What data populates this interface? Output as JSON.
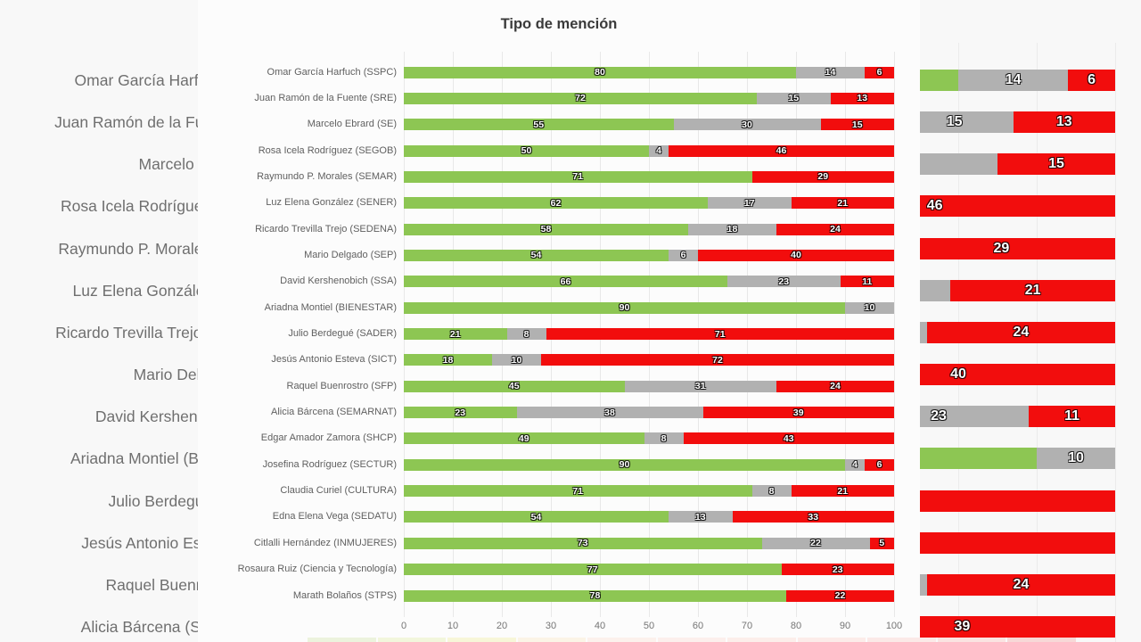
{
  "title": "Tipo de mención",
  "colors": {
    "green": "#8dc653",
    "gray": "#b1b1b1",
    "red": "#f20d0d",
    "grid_main": "#e8e8e8",
    "grid_bg": "#ebebeb",
    "title_text": "#3a3a3a",
    "category_text": "#606060",
    "bg_category_text": "#6f6f6f",
    "axis_text": "#757575",
    "panel_bg": "#fcfcfc",
    "outer_bg": "#f8f8f8"
  },
  "chart_data": {
    "type": "bar",
    "orientation": "horizontal",
    "stacked": true,
    "title": "Tipo de mención",
    "xlabel": "",
    "ylabel": "",
    "xlim": [
      0,
      100
    ],
    "grid": true,
    "legend": "none",
    "categories": [
      "Omar García Harfuch (SSPC)",
      "Juan Ramón de la Fuente (SRE)",
      "Marcelo Ebrard (SE)",
      "Rosa Icela Rodríguez (SEGOB)",
      "Raymundo P. Morales (SEMAR)",
      "Luz Elena González (SENER)",
      "Ricardo Trevilla Trejo (SEDENA)",
      "Mario Delgado (SEP)",
      "David Kershenobich (SSA)",
      "Ariadna Montiel (BIENESTAR)",
      "Julio Berdegué (SADER)",
      "Jesús Antonio Esteva (SICT)",
      "Raquel Buenrostro (SFP)",
      "Alicia Bárcena (SEMARNAT)",
      "Edgar Amador Zamora (SHCP)",
      "Josefina Rodríguez (SECTUR)",
      "Claudia Curiel (CULTURA)",
      "Edna Elena Vega (SEDATU)",
      "Citlalli Hernández (INMUJERES)",
      "Rosaura Ruiz (Ciencia y Tecnología)",
      "Marath Bolaños (STPS)"
    ],
    "series": [
      {
        "name": "green",
        "color": "#8dc653",
        "values": [
          80,
          72,
          55,
          50,
          71,
          62,
          58,
          54,
          66,
          90,
          21,
          18,
          45,
          23,
          49,
          90,
          71,
          54,
          73,
          77,
          78
        ]
      },
      {
        "name": "gray",
        "color": "#b1b1b1",
        "values": [
          14,
          15,
          30,
          4,
          0,
          17,
          18,
          6,
          23,
          10,
          8,
          10,
          31,
          38,
          8,
          4,
          8,
          13,
          22,
          0,
          0
        ]
      },
      {
        "name": "red",
        "color": "#f20d0d",
        "values": [
          6,
          13,
          15,
          46,
          29,
          21,
          24,
          40,
          11,
          0,
          71,
          72,
          24,
          39,
          43,
          6,
          21,
          33,
          5,
          23,
          22
        ]
      }
    ],
    "x_ticks": [
      "0",
      "10",
      "20",
      "30",
      "40",
      "50",
      "60",
      "70",
      "80",
      "90",
      "100"
    ]
  },
  "background_chart": {
    "note_visible_rows": 14,
    "same_data_as": "chart_data"
  },
  "bottom_strip": {
    "segment_colors": [
      "#ecf3dd",
      "#f2f6dc",
      "#f7f6d8",
      "#fbf4e6",
      "#fcf1ec",
      "#fcefec",
      "#fceeea",
      "#fcece9",
      "#fbe9e7",
      "#fae3e1",
      "#f7d8d7"
    ]
  }
}
